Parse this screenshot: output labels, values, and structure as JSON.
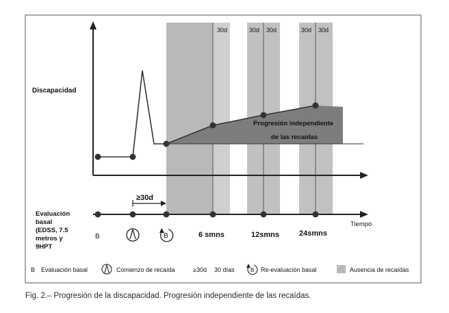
{
  "diagram": {
    "y_label": "Discapacidad",
    "shaded_band_labels": [
      "30d",
      "30d",
      "30d",
      "30d",
      "30d"
    ],
    "progression_label": [
      "Progresión independiente",
      "de las recaídas"
    ],
    "timeline": {
      "left_label": [
        "Evaluación",
        "basal",
        "(EDSS, 7.5",
        "metros y",
        "9HPT"
      ],
      "gap_label": "≥30d",
      "axis_label": "Tiempo",
      "points": [
        {
          "label": "B"
        },
        {
          "label": "",
          "icon": "relapse-icon"
        },
        {
          "label": "",
          "icon": "reassessment-icon"
        },
        {
          "label": "6 smns"
        },
        {
          "label": "12smns"
        },
        {
          "label": "24smns"
        }
      ],
      "relapse_icon_letter": "/\\",
      "reassessment_icon_letter": "B"
    },
    "legend": {
      "baseline": "Evaluación basal",
      "baseline_key": "B",
      "relapse": "Comienzo de recaída",
      "gap_key": "≥30d",
      "gap": "30 días",
      "reassessment": "Re-evaluación basal",
      "reassessment_key": "B",
      "no_relapse": "Ausencia de recaídas"
    },
    "colors": {
      "shade": "#b9b9b9",
      "dark_fill": "#7d7d7d",
      "line": "#333333"
    }
  },
  "caption": "Fig. 2.– Progresión de la discapacidad. Progresión independiente de las recaídas."
}
